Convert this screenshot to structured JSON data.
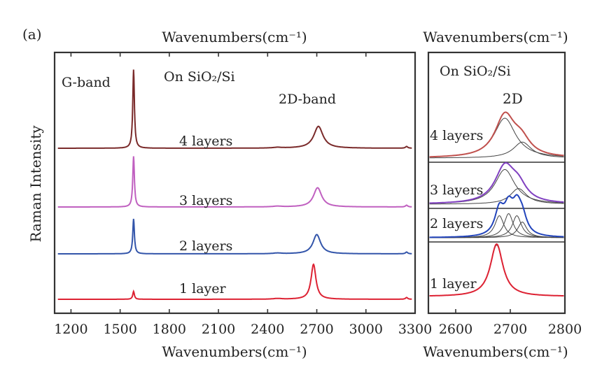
{
  "figure": {
    "panel_label": "(a)",
    "ylabel": "Raman Intensity"
  },
  "chart_data": [
    {
      "type": "line",
      "xlabel": "Wavenumbers(cm⁻¹)",
      "top_xlabel": "Wavenumbers(cm⁻¹)",
      "ylabel": "Raman Intensity",
      "xlim": [
        1100,
        3300
      ],
      "xticks": [
        1200,
        1500,
        1800,
        2100,
        2400,
        2700,
        3000,
        3300
      ],
      "yticks": false,
      "annotations": {
        "g_band": "G-band",
        "d2_band": "2D-band",
        "substrate": "On SiO₂/Si"
      },
      "series": [
        {
          "name": "4 layers",
          "color": "#7a2a2a",
          "offset": 3,
          "peaks": [
            [
              1582,
              4.5,
              6
            ],
            [
              2710,
              1.25,
              34
            ],
            [
              2460,
              0.04,
              30
            ],
            [
              3248,
              0.1,
              8
            ]
          ]
        },
        {
          "name": "3 layers",
          "color": "#c060c0",
          "offset": 2,
          "peaks": [
            [
              1582,
              2.9,
              6
            ],
            [
              2705,
              1.1,
              30
            ],
            [
              2460,
              0.04,
              30
            ],
            [
              3248,
              0.1,
              8
            ]
          ]
        },
        {
          "name": "2 layers",
          "color": "#3355aa",
          "offset": 1,
          "peaks": [
            [
              1582,
              2.0,
              6
            ],
            [
              2700,
              1.1,
              28
            ],
            [
              2460,
              0.04,
              30
            ],
            [
              3248,
              0.1,
              8
            ]
          ]
        },
        {
          "name": "1 layer",
          "color": "#dd2233",
          "offset": 0,
          "peaks": [
            [
              1582,
              0.45,
              6
            ],
            [
              2680,
              2.0,
              18
            ],
            [
              2460,
              0.04,
              30
            ],
            [
              3248,
              0.1,
              8
            ]
          ]
        }
      ]
    },
    {
      "type": "line",
      "title": "2D",
      "xlabel": "Wavenumbers(cm⁻¹)",
      "top_xlabel": "Wavenumbers(cm⁻¹)",
      "xlim": [
        2550,
        2800
      ],
      "xticks": [
        2600,
        2700,
        2800
      ],
      "annotations": {
        "substrate": "On SiO₂/Si"
      },
      "series": [
        {
          "name": "4 layers",
          "color": "#c0504d",
          "peaks": [
            [
              2690,
              0.62,
              22
            ],
            [
              2720,
              0.22,
              20
            ]
          ],
          "components": [
            [
              2690,
              0.6,
              24
            ],
            [
              2722,
              0.24,
              20
            ]
          ]
        },
        {
          "name": "3 layers",
          "color": "#8040c0",
          "peaks": [
            [
              2690,
              0.65,
              22
            ],
            [
              2715,
              0.25,
              18
            ]
          ],
          "components": [
            [
              2690,
              0.62,
              22
            ],
            [
              2715,
              0.28,
              18
            ]
          ]
        },
        {
          "name": "2 layers",
          "color": "#2244bb",
          "peaks": [
            [
              2680,
              0.48,
              10
            ],
            [
              2697,
              0.48,
              10
            ],
            [
              2712,
              0.48,
              10
            ],
            [
              2722,
              0.3,
              10
            ]
          ],
          "components": [
            [
              2680,
              0.42,
              10
            ],
            [
              2697,
              0.46,
              10
            ],
            [
              2712,
              0.42,
              10
            ],
            [
              2722,
              0.3,
              10
            ]
          ]
        },
        {
          "name": "1 layer",
          "color": "#dd2233",
          "peaks": [
            [
              2675,
              1.0,
              14
            ]
          ],
          "components": [
            [
              2675,
              0.98,
              14
            ]
          ]
        }
      ]
    }
  ]
}
